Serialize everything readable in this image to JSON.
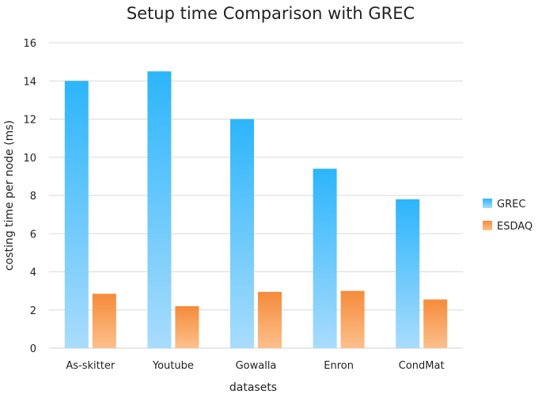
{
  "chart_data": {
    "type": "bar",
    "title": "Setup time Comparison with GREC",
    "xlabel": "datasets",
    "ylabel": "costing time per node (ms)",
    "categories": [
      "As-skitter",
      "Youtube",
      "Gowalla",
      "Enron",
      "CondMat"
    ],
    "series": [
      {
        "name": "GREC",
        "values": [
          14.0,
          14.5,
          12.0,
          9.4,
          7.8
        ],
        "color_top": "#2cb5fb",
        "color_bottom": "#a9dcfd"
      },
      {
        "name": "ESDAQ",
        "values": [
          2.85,
          2.2,
          2.95,
          3.0,
          2.55
        ],
        "color_top": "#f58b3a",
        "color_bottom": "#fcc08c"
      }
    ],
    "ylim": [
      0,
      16
    ],
    "yticks": [
      "0",
      "2",
      "4",
      "6",
      "8",
      "10",
      "12",
      "14",
      "16"
    ],
    "grid": true,
    "legend_position": "right"
  }
}
